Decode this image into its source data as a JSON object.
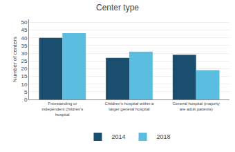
{
  "chart_data": {
    "type": "bar",
    "title": "Center type",
    "categories": [
      "Freestanding or\nindependent children's\nhospital",
      "Children's hospital within a\nlarger general hospital",
      "General hospital (majority\nare adult patients)"
    ],
    "series": [
      {
        "name": "2014",
        "color": "#1a4e6e",
        "values": [
          40,
          27,
          29
        ]
      },
      {
        "name": "2018",
        "color": "#5bbde0",
        "values": [
          43,
          31,
          19
        ]
      }
    ],
    "ylabel": "Number of centers",
    "ylim": [
      0,
      52
    ],
    "yticks": [
      0,
      5,
      10,
      15,
      20,
      25,
      30,
      35,
      40,
      45,
      50
    ],
    "grid": true,
    "legend": "bottom"
  }
}
